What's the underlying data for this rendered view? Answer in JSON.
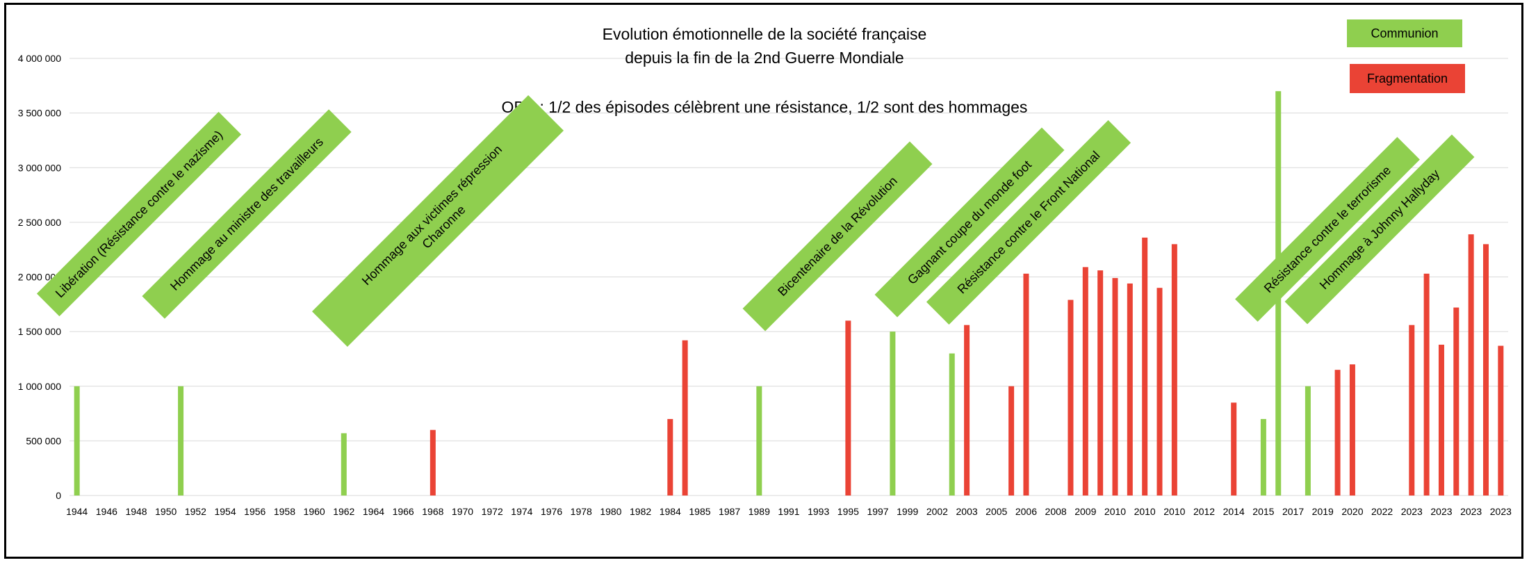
{
  "chart_data": {
    "type": "bar",
    "title_lines": [
      "Evolution émotionnelle de la société française",
      "depuis la fin de la 2nd Guerre Mondiale"
    ],
    "subtitle": "OBS : 1/2 des épisodes célèbrent une résistance, 1/2 sont des hommages",
    "legend": [
      {
        "label": "Communion",
        "color": "#8fcf4f"
      },
      {
        "label": "Fragmentation",
        "color": "#ea4335"
      }
    ],
    "y_ticks": [
      "0",
      "500 000",
      "1 000 000",
      "1 500 000",
      "2 000 000",
      "2 500 000",
      "3 000 000",
      "3 500 000",
      "4 000 000"
    ],
    "ylim": [
      0,
      4000000
    ],
    "grid": true,
    "x_ticks": [
      "1944",
      "1946",
      "1948",
      "1950",
      "1952",
      "1954",
      "1956",
      "1958",
      "1960",
      "1962",
      "1964",
      "1966",
      "1968",
      "1970",
      "1972",
      "1974",
      "1976",
      "1978",
      "1980",
      "1982",
      "1984",
      "1985",
      "1987",
      "1989",
      "1991",
      "1993",
      "1995",
      "1997",
      "1999",
      "2002",
      "2003",
      "2005",
      "2006",
      "2008",
      "2009",
      "2010",
      "2010",
      "2010",
      "2012",
      "2014",
      "2015",
      "2017",
      "2019",
      "2020",
      "2022",
      "2023",
      "2023",
      "2023",
      "2023"
    ],
    "bars": [
      {
        "cat": 0,
        "value": 1000000,
        "series": "Communion"
      },
      {
        "cat": 7,
        "value": 1000000,
        "series": "Communion"
      },
      {
        "cat": 18,
        "value": 570000,
        "series": "Communion"
      },
      {
        "cat": 24,
        "value": 600000,
        "series": "Fragmentation"
      },
      {
        "cat": 40,
        "value": 700000,
        "series": "Fragmentation"
      },
      {
        "cat": 41,
        "value": 1420000,
        "series": "Fragmentation"
      },
      {
        "cat": 46,
        "value": 1000000,
        "series": "Communion"
      },
      {
        "cat": 52,
        "value": 1600000,
        "series": "Fragmentation"
      },
      {
        "cat": 55,
        "value": 1500000,
        "series": "Communion"
      },
      {
        "cat": 59,
        "value": 1300000,
        "series": "Communion"
      },
      {
        "cat": 60,
        "value": 1560000,
        "series": "Fragmentation"
      },
      {
        "cat": 63,
        "value": 1000000,
        "series": "Fragmentation"
      },
      {
        "cat": 64,
        "value": 2030000,
        "series": "Fragmentation"
      },
      {
        "cat": 67,
        "value": 1790000,
        "series": "Fragmentation"
      },
      {
        "cat": 68,
        "value": 2090000,
        "series": "Fragmentation"
      },
      {
        "cat": 69,
        "value": 2060000,
        "series": "Fragmentation"
      },
      {
        "cat": 70,
        "value": 1990000,
        "series": "Fragmentation"
      },
      {
        "cat": 71,
        "value": 1940000,
        "series": "Fragmentation"
      },
      {
        "cat": 72,
        "value": 2360000,
        "series": "Fragmentation"
      },
      {
        "cat": 73,
        "value": 1900000,
        "series": "Fragmentation"
      },
      {
        "cat": 74,
        "value": 2300000,
        "series": "Fragmentation"
      },
      {
        "cat": 78,
        "value": 850000,
        "series": "Fragmentation"
      },
      {
        "cat": 80,
        "value": 700000,
        "series": "Communion"
      },
      {
        "cat": 81,
        "value": 3700000,
        "series": "Communion"
      },
      {
        "cat": 83,
        "value": 1000000,
        "series": "Communion"
      },
      {
        "cat": 85,
        "value": 1150000,
        "series": "Fragmentation"
      },
      {
        "cat": 86,
        "value": 1200000,
        "series": "Fragmentation"
      },
      {
        "cat": 90,
        "value": 1560000,
        "series": "Fragmentation"
      },
      {
        "cat": 91,
        "value": 2030000,
        "series": "Fragmentation"
      },
      {
        "cat": 92,
        "value": 1380000,
        "series": "Fragmentation"
      },
      {
        "cat": 93,
        "value": 1720000,
        "series": "Fragmentation"
      },
      {
        "cat": 94,
        "value": 2390000,
        "series": "Fragmentation"
      },
      {
        "cat": 95,
        "value": 2300000,
        "series": "Fragmentation"
      },
      {
        "cat": 96,
        "value": 1370000,
        "series": "Fragmentation"
      }
    ],
    "annotations": [
      "Libération (Résistance contre le nazisme)",
      "Hommage au ministre des travailleurs",
      "Hommage aux victimes répression\nCharonne",
      "Bicentenaire de la Révolution",
      "Gagnant coupe du monde foot",
      "Résistance contre le Front National",
      "Résistance contre le terrorisme",
      "Hommage à Johnny Hallyday"
    ]
  }
}
